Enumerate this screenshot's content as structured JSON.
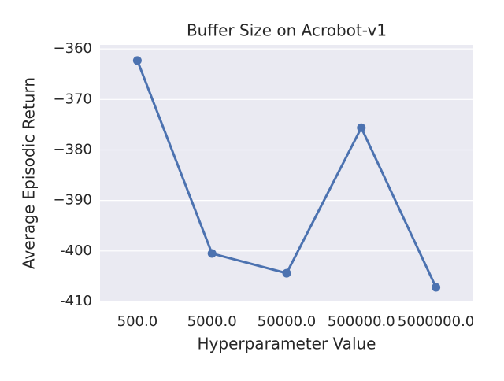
{
  "chart_data": {
    "type": "line",
    "title": "Buffer Size on Acrobot-v1",
    "x_label": "Hyperparameter Value",
    "y_label": "Average Episodic Return",
    "categories": [
      "500.0",
      "5000.0",
      "50000.0",
      "500000.0",
      "5000000.0"
    ],
    "series": [
      {
        "name": "Average Episodic Return",
        "color": "#4c72b0",
        "values": [
          -362.3,
          -400.5,
          -404.4,
          -375.6,
          -407.2
        ]
      }
    ],
    "ylim": [
      -410,
      -359.2
    ],
    "yticks": [
      {
        "value": -360,
        "label": "−360"
      },
      {
        "value": -370,
        "label": "−370"
      },
      {
        "value": -380,
        "label": "−380"
      },
      {
        "value": -390,
        "label": "−390"
      },
      -400,
      -410
    ],
    "grid": true
  }
}
